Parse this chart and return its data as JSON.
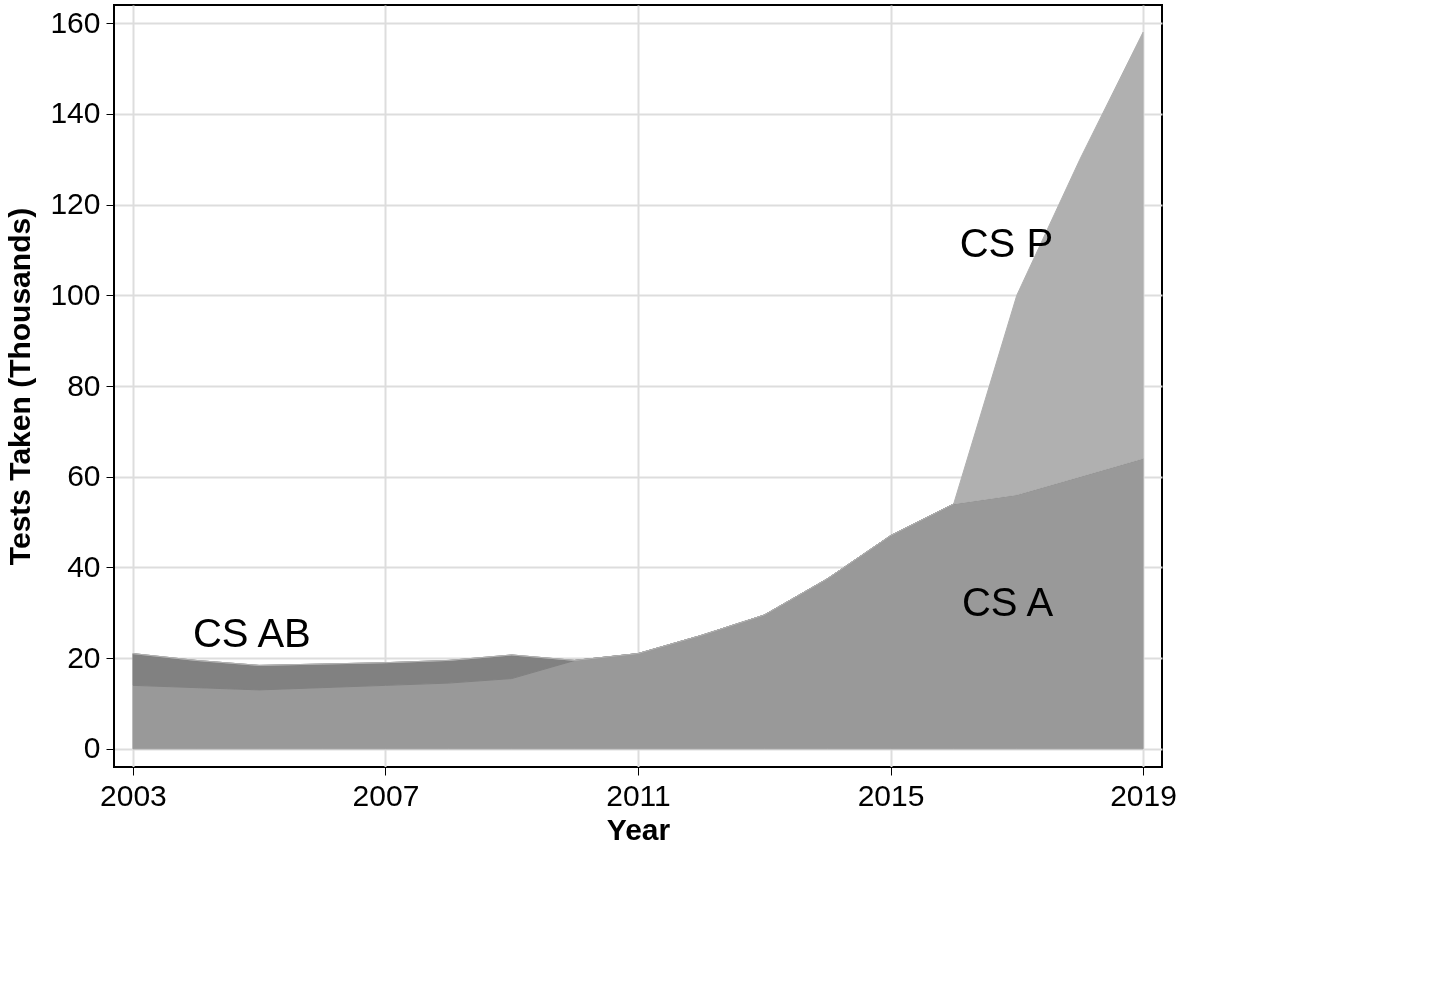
{
  "chart_data": {
    "type": "area",
    "stacked": true,
    "xlabel": "Year",
    "ylabel": "Tests Taken (Thousands)",
    "x": [
      2003,
      2004,
      2005,
      2006,
      2007,
      2008,
      2009,
      2010,
      2011,
      2012,
      2013,
      2014,
      2015,
      2016,
      2017,
      2018,
      2019
    ],
    "series": [
      {
        "name": "CS A",
        "color": "#999999",
        "values": [
          14,
          13.5,
          13,
          13.5,
          14,
          14.5,
          15.5,
          19.5,
          21,
          25,
          29.5,
          37.5,
          47,
          54,
          56,
          60,
          64
        ]
      },
      {
        "name": "CS AB",
        "color": "#818181",
        "values": [
          7,
          6,
          5.4,
          5.2,
          5,
          5,
          5.2,
          0,
          0,
          0,
          0,
          0,
          0,
          0,
          0,
          0,
          0
        ]
      },
      {
        "name": "CS P",
        "color": "#b0b0b0",
        "values": [
          0,
          0,
          0,
          0,
          0,
          0,
          0,
          0,
          0,
          0,
          0,
          0,
          0,
          0,
          44,
          70,
          94
        ]
      }
    ],
    "xlim": [
      2002.7,
      2019.3
    ],
    "xticks": [
      2003,
      2007,
      2011,
      2015,
      2019
    ],
    "ylim": [
      -4,
      164
    ],
    "yticks": [
      0,
      20,
      40,
      60,
      80,
      100,
      120,
      140,
      160
    ],
    "grid": true
  }
}
